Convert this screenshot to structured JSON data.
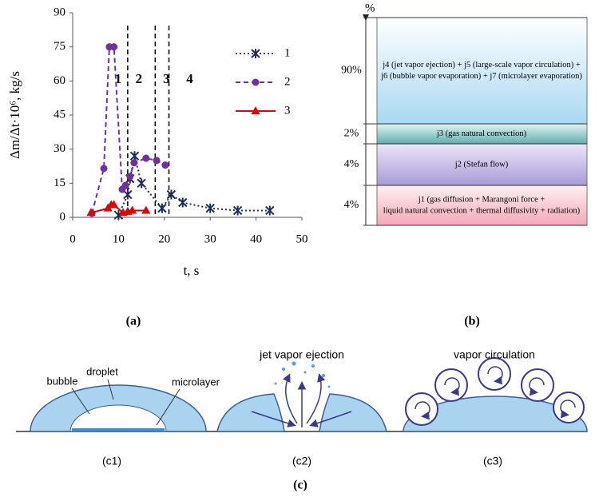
{
  "chart_data": {
    "type": "line",
    "y_label": "Δm/Δt·10⁶, kg/s",
    "x_label": "t, s",
    "caption": "(a)",
    "xlim": [
      0,
      50
    ],
    "xticks": [
      0,
      10,
      20,
      30,
      40,
      50
    ],
    "ylim": [
      0,
      90
    ],
    "yticks": [
      0,
      15,
      30,
      45,
      60,
      75,
      90
    ],
    "phase_boundaries": [
      12,
      18,
      21
    ],
    "phase_labels": [
      "1",
      "2",
      "3",
      "4"
    ],
    "series": [
      {
        "name": "1",
        "color": "#1f2d5c",
        "line_style": "dotted",
        "marker": "asterisk",
        "x": [
          10,
          12,
          12.5,
          13.5,
          15,
          19.5,
          21.5,
          24,
          30,
          36,
          43
        ],
        "values": [
          1,
          10,
          17,
          27,
          15,
          4,
          10,
          6.5,
          4,
          3,
          3
        ]
      },
      {
        "name": "2",
        "color": "#7030a0",
        "line_style": "dashed",
        "marker": "circle",
        "x": [
          4.2,
          6.8,
          8,
          9,
          10.8,
          11.5,
          12.5,
          13.4,
          16,
          18.3,
          20.2
        ],
        "values": [
          1.8,
          21.5,
          75,
          75,
          12.3,
          14,
          18,
          24,
          26,
          25,
          23
        ]
      },
      {
        "name": "3",
        "color": "#e00000",
        "line_style": "solid",
        "marker": "triangle",
        "x": [
          4,
          7.7,
          8.4,
          9,
          11,
          12,
          13,
          16
        ],
        "values": [
          2,
          4,
          5.5,
          5.5,
          2,
          2.5,
          3,
          3
        ]
      }
    ]
  },
  "panel_b": {
    "unit": "%",
    "caption": "(b)",
    "rows": [
      {
        "share": "90%",
        "lines": [
          "j4 (jet vapor ejection) + j5 (large-scale vapor circulation) +",
          "j6 (bubble vapor evaporation) + j7 (microlayer evaporation)"
        ]
      },
      {
        "share": "2%",
        "lines": [
          "j3 (gas natural convection)"
        ]
      },
      {
        "share": "4%",
        "lines": [
          "j2 (Stefan flow)"
        ]
      },
      {
        "share": "4%",
        "lines": [
          "j1 (gas diffusion + Marangoni force +",
          "liquid natural convection + thermal diffusivity + radiation)"
        ]
      }
    ]
  },
  "panel_c": {
    "caption": "(c)",
    "droplet": "droplet",
    "bubble": "bubble",
    "microlayer": "microlayer",
    "jet": "jet vapor ejection",
    "circulation": "vapor circulation",
    "sub_captions": [
      "(c1)",
      "(c2)",
      "(c3)"
    ]
  }
}
